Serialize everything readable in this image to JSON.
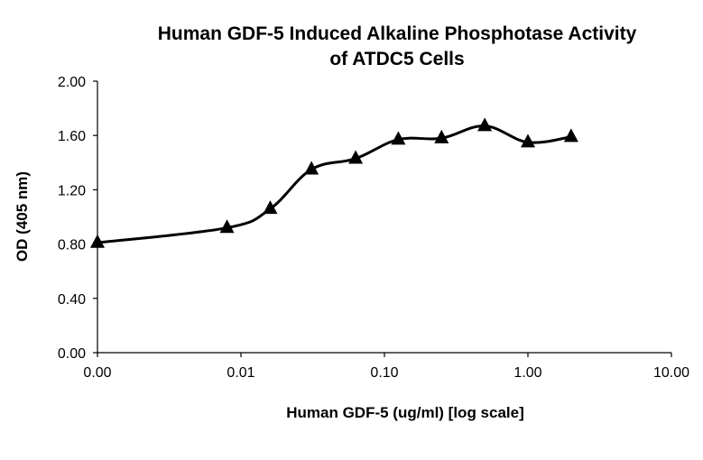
{
  "chart_data": {
    "type": "line",
    "title_lines": [
      "Human GDF-5 Induced Alkaline Phosphotase Activity",
      "of ATDC5 Cells"
    ],
    "xlabel": "Human GDF-5 (ug/ml) [log scale]",
    "ylabel": "OD (405 nm)",
    "x_scale": "log",
    "x_tick_labels": [
      "0.00",
      "0.01",
      "0.10",
      "1.00",
      "10.00"
    ],
    "y_tick_labels": [
      "0.00",
      "0.40",
      "0.80",
      "1.20",
      "1.60",
      "2.00"
    ],
    "ylim": [
      0,
      2.0
    ],
    "grid": false,
    "legend": "none",
    "marker": "triangle",
    "line_color": "#000000",
    "series": [
      {
        "x": [
          0.001,
          0.008,
          0.016,
          0.031,
          0.063,
          0.125,
          0.25,
          0.5,
          1.0,
          2.0
        ],
        "values": [
          0.81,
          0.92,
          1.06,
          1.35,
          1.43,
          1.57,
          1.58,
          1.67,
          1.55,
          1.59
        ]
      }
    ]
  }
}
